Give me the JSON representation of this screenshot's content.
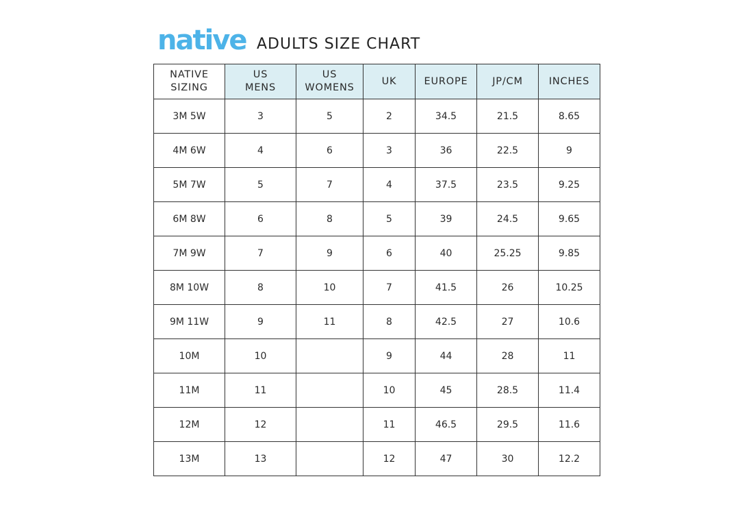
{
  "brand": {
    "logo_text": "native",
    "logo_color": "#4db3e8"
  },
  "title": "ADULTS SIZE CHART",
  "header_color": "#dbeef3",
  "columns": [
    [
      "NATIVE",
      "SIZING"
    ],
    [
      "US",
      "MENS"
    ],
    [
      "US",
      "WOMENS"
    ],
    [
      "UK"
    ],
    [
      "EUROPE"
    ],
    [
      "JP/CM"
    ],
    [
      "INCHES"
    ]
  ],
  "rows": [
    [
      "3M 5W",
      "3",
      "5",
      "2",
      "34.5",
      "21.5",
      "8.65"
    ],
    [
      "4M 6W",
      "4",
      "6",
      "3",
      "36",
      "22.5",
      "9"
    ],
    [
      "5M 7W",
      "5",
      "7",
      "4",
      "37.5",
      "23.5",
      "9.25"
    ],
    [
      "6M 8W",
      "6",
      "8",
      "5",
      "39",
      "24.5",
      "9.65"
    ],
    [
      "7M 9W",
      "7",
      "9",
      "6",
      "40",
      "25.25",
      "9.85"
    ],
    [
      "8M 10W",
      "8",
      "10",
      "7",
      "41.5",
      "26",
      "10.25"
    ],
    [
      "9M 11W",
      "9",
      "11",
      "8",
      "42.5",
      "27",
      "10.6"
    ],
    [
      "10M",
      "10",
      "",
      "9",
      "44",
      "28",
      "11"
    ],
    [
      "11M",
      "11",
      "",
      "10",
      "45",
      "28.5",
      "11.4"
    ],
    [
      "12M",
      "12",
      "",
      "11",
      "46.5",
      "29.5",
      "11.6"
    ],
    [
      "13M",
      "13",
      "",
      "12",
      "47",
      "30",
      "12.2"
    ]
  ]
}
